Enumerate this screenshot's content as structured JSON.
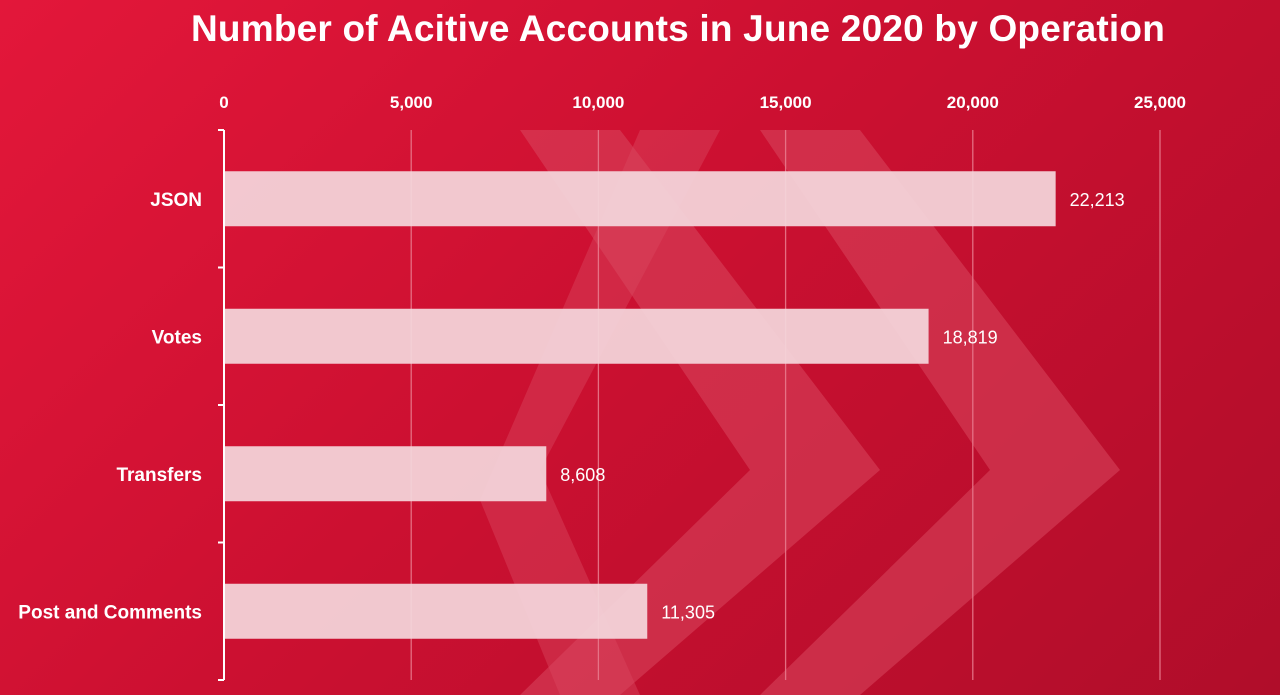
{
  "chart_data": {
    "type": "bar",
    "orientation": "horizontal",
    "title": "Number of Acitive Accounts in June 2020 by Operation",
    "categories": [
      "JSON",
      "Votes",
      "Transfers",
      "Post and Comments"
    ],
    "values": [
      22213,
      18819,
      8608,
      11305
    ],
    "data_labels": [
      "22,213",
      "18,819",
      "8,608",
      "11,305"
    ],
    "xlim": [
      0,
      25000
    ],
    "x_ticks": [
      0,
      5000,
      10000,
      15000,
      20000,
      25000
    ],
    "x_tick_labels": [
      "0",
      "5,000",
      "10,000",
      "15,000",
      "20,000",
      "25,000"
    ],
    "x_axis_position": "top",
    "grid": true,
    "legend": "none",
    "colors": {
      "background": "#cc1031",
      "bar": "#f4d6dc",
      "text": "#ffffff",
      "grid": "#e8798c",
      "watermark": "#d9475f"
    },
    "watermark": "hive-logo-chevrons"
  }
}
